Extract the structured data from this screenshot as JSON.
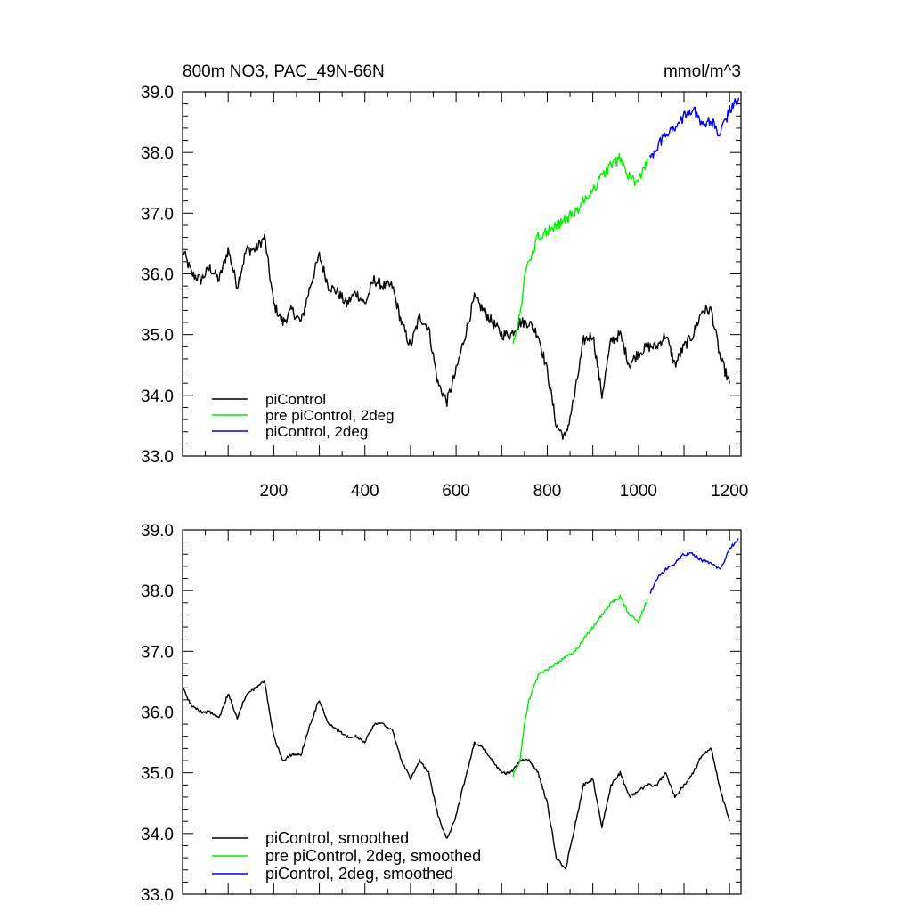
{
  "figure": {
    "title_left": "800m NO3, PAC_49N-66N",
    "title_right": "mmol/m^3"
  },
  "colors": {
    "piControl": "#000000",
    "pre_piControl_2deg": "#00ee00",
    "piControl_2deg": "#0000ee"
  },
  "chart_data": [
    {
      "type": "line",
      "title": "800m NO3, PAC_49N-66N",
      "units": "mmol/m^3",
      "xlim": [
        0,
        1225
      ],
      "ylim": [
        33.0,
        39.0
      ],
      "x_ticks": [
        200,
        400,
        600,
        800,
        1000,
        1200
      ],
      "x_tick_labels": [
        "200",
        "400",
        "600",
        "800",
        "1000",
        "1200"
      ],
      "y_ticks": [
        33,
        34,
        35,
        36,
        37,
        38,
        39
      ],
      "y_tick_labels": [
        "33.0",
        "34.0",
        "35.0",
        "36.0",
        "37.0",
        "38.0",
        "39.0"
      ],
      "legend_position": "bottom-left",
      "series": [
        {
          "name": "piControl",
          "color": "#000000",
          "x": [
            0,
            20,
            40,
            60,
            80,
            100,
            120,
            140,
            160,
            180,
            200,
            220,
            240,
            260,
            280,
            300,
            320,
            340,
            360,
            380,
            400,
            420,
            440,
            460,
            480,
            500,
            520,
            540,
            560,
            580,
            600,
            620,
            640,
            660,
            680,
            700,
            720,
            740,
            760,
            780,
            800,
            820,
            840,
            860,
            880,
            900,
            920,
            940,
            960,
            980,
            1000,
            1020,
            1040,
            1060,
            1080,
            1100,
            1120,
            1140,
            1160,
            1180,
            1200
          ],
          "y": [
            36.4,
            36.0,
            35.9,
            36.1,
            35.9,
            36.4,
            35.8,
            36.4,
            36.4,
            36.6,
            35.5,
            35.2,
            35.4,
            35.2,
            35.8,
            36.3,
            35.8,
            35.7,
            35.5,
            35.7,
            35.5,
            35.9,
            35.8,
            35.8,
            35.2,
            34.8,
            35.3,
            35.1,
            34.2,
            33.9,
            34.4,
            35.0,
            35.6,
            35.4,
            35.2,
            35.0,
            35.0,
            35.2,
            35.2,
            35.0,
            34.4,
            33.5,
            33.3,
            34.0,
            34.9,
            35.0,
            34.0,
            34.9,
            35.0,
            34.5,
            34.7,
            34.8,
            34.8,
            35.0,
            34.5,
            34.8,
            35.0,
            35.4,
            35.4,
            34.6,
            34.2
          ]
        },
        {
          "name": "pre piControl, 2deg",
          "color": "#00ee00",
          "x": [
            725,
            740,
            750,
            760,
            780,
            800,
            820,
            840,
            860,
            880,
            900,
            920,
            940,
            960,
            980,
            1000,
            1020
          ],
          "y": [
            34.9,
            35.3,
            35.9,
            36.2,
            36.6,
            36.7,
            36.8,
            36.9,
            37.0,
            37.2,
            37.4,
            37.6,
            37.8,
            37.9,
            37.6,
            37.5,
            37.9
          ]
        },
        {
          "name": "piControl, 2deg",
          "color": "#0000ee",
          "x": [
            1025,
            1040,
            1060,
            1080,
            1100,
            1120,
            1140,
            1160,
            1180,
            1200,
            1220
          ],
          "y": [
            37.9,
            38.1,
            38.3,
            38.4,
            38.6,
            38.7,
            38.5,
            38.5,
            38.3,
            38.7,
            38.9
          ]
        }
      ]
    },
    {
      "type": "line",
      "xlim": [
        0,
        1225
      ],
      "ylim": [
        33.0,
        39.0
      ],
      "x_ticks": [
        200,
        400,
        600,
        800,
        1000,
        1200
      ],
      "y_ticks": [
        33,
        34,
        35,
        36,
        37,
        38,
        39
      ],
      "y_tick_labels": [
        "33.0",
        "34.0",
        "35.0",
        "36.0",
        "37.0",
        "38.0",
        "39.0"
      ],
      "legend_position": "bottom-left",
      "series": [
        {
          "name": "piControl, smoothed",
          "color": "#000000",
          "x": [
            0,
            20,
            40,
            60,
            80,
            100,
            120,
            140,
            160,
            180,
            200,
            220,
            240,
            260,
            280,
            300,
            320,
            340,
            360,
            380,
            400,
            420,
            440,
            460,
            480,
            500,
            520,
            540,
            560,
            580,
            600,
            620,
            640,
            660,
            680,
            700,
            720,
            740,
            760,
            780,
            800,
            820,
            840,
            860,
            880,
            900,
            920,
            940,
            960,
            980,
            1000,
            1020,
            1040,
            1060,
            1080,
            1100,
            1120,
            1140,
            1160,
            1180,
            1200
          ],
          "y": [
            36.4,
            36.1,
            36.0,
            36.0,
            35.9,
            36.3,
            35.9,
            36.3,
            36.4,
            36.5,
            35.6,
            35.2,
            35.3,
            35.3,
            35.8,
            36.2,
            35.8,
            35.7,
            35.6,
            35.6,
            35.5,
            35.8,
            35.8,
            35.7,
            35.2,
            34.9,
            35.2,
            35.0,
            34.3,
            33.9,
            34.3,
            34.9,
            35.5,
            35.4,
            35.2,
            35.0,
            35.0,
            35.2,
            35.2,
            35.0,
            34.5,
            33.6,
            33.4,
            34.1,
            34.8,
            34.9,
            34.1,
            34.8,
            35.0,
            34.6,
            34.7,
            34.8,
            34.8,
            35.0,
            34.6,
            34.8,
            35.0,
            35.3,
            35.4,
            34.7,
            34.2
          ]
        },
        {
          "name": "pre piControl, 2deg, smoothed",
          "color": "#00ee00",
          "x": [
            725,
            740,
            750,
            760,
            780,
            800,
            820,
            840,
            860,
            880,
            900,
            920,
            940,
            960,
            980,
            1000,
            1020
          ],
          "y": [
            34.95,
            35.2,
            35.8,
            36.2,
            36.6,
            36.7,
            36.8,
            36.9,
            37.0,
            37.2,
            37.4,
            37.6,
            37.8,
            37.9,
            37.6,
            37.5,
            37.85
          ]
        },
        {
          "name": "piControl, 2deg, smoothed",
          "color": "#0000ee",
          "x": [
            1025,
            1040,
            1060,
            1080,
            1100,
            1120,
            1140,
            1160,
            1180,
            1200,
            1220
          ],
          "y": [
            37.95,
            38.2,
            38.35,
            38.45,
            38.6,
            38.6,
            38.5,
            38.45,
            38.35,
            38.7,
            38.85
          ]
        }
      ]
    }
  ]
}
